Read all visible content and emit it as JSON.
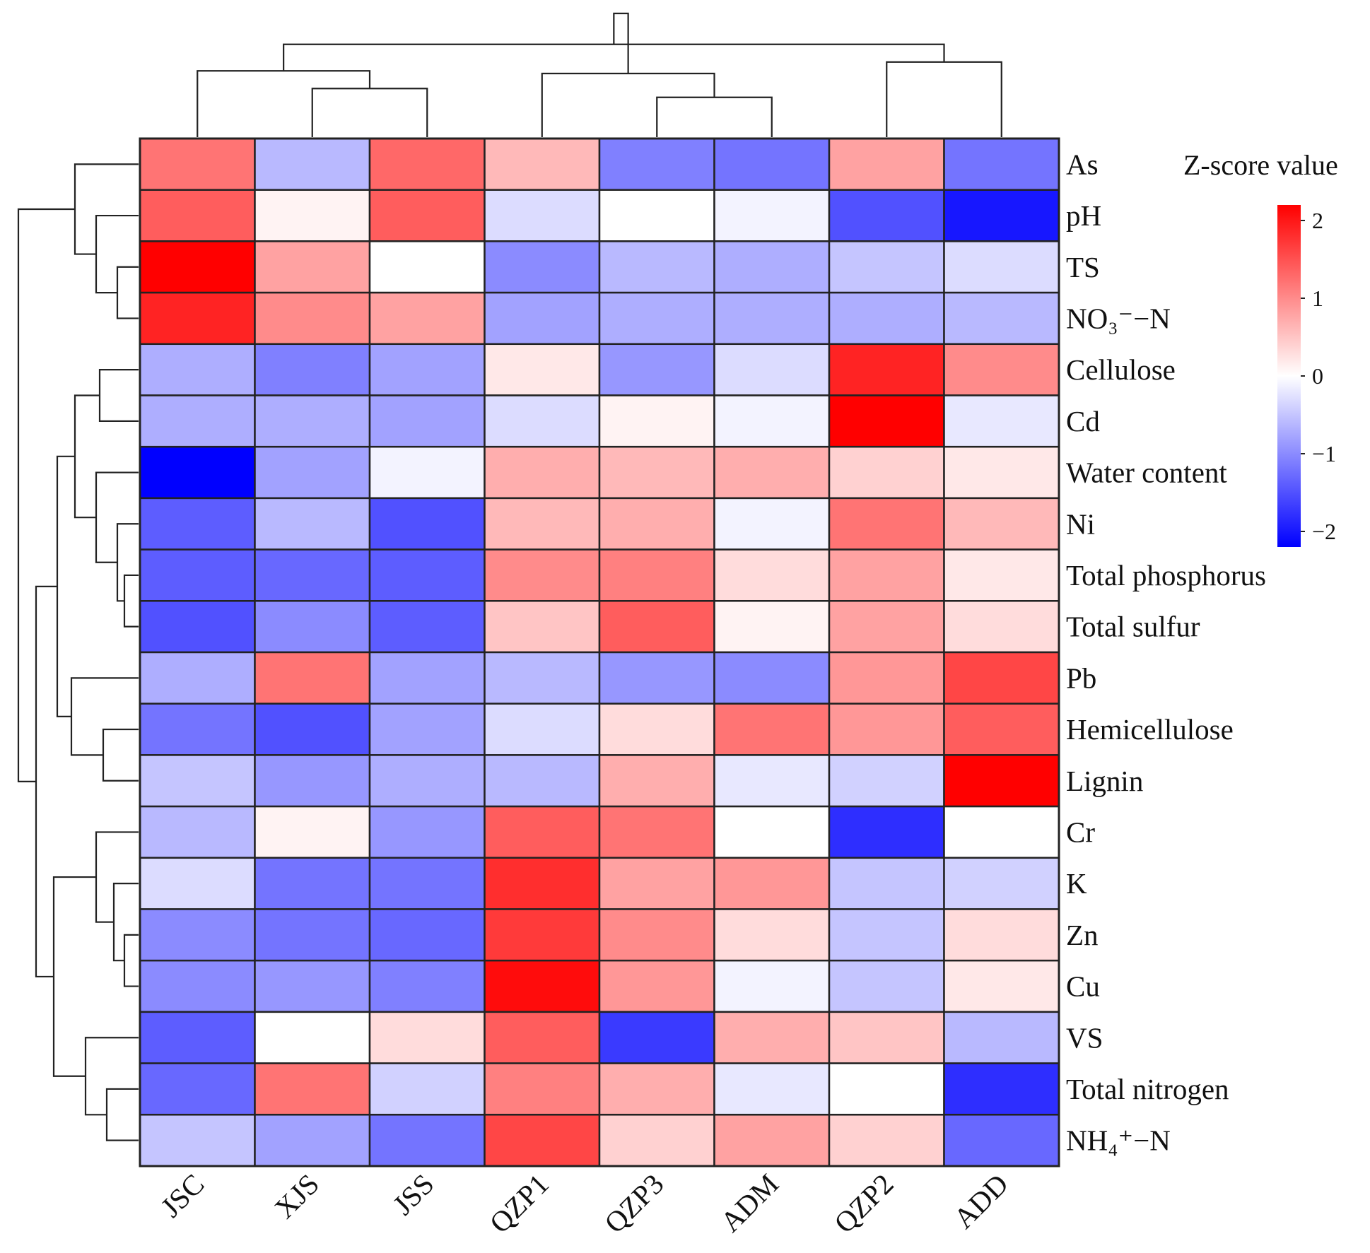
{
  "chart_data": {
    "type": "heatmap",
    "title": "",
    "legend_title": "Z-score value",
    "legend_placement": "top-right",
    "legend_ticks": [
      2,
      1,
      0,
      -1,
      -2
    ],
    "legend_tick_labels": [
      "2",
      "1",
      "0",
      "−1",
      "−2"
    ],
    "value_range": [
      -2.2,
      2.2
    ],
    "colors": {
      "low": "#0000ff",
      "mid": "#ffffff",
      "high": "#ff0000",
      "border": "#222222"
    },
    "columns": [
      "JSC",
      "XJS",
      "JSS",
      "QZP1",
      "QZP3",
      "ADM",
      "QZP2",
      "ADD"
    ],
    "rows": [
      "As",
      "pH",
      "TS",
      "NO₃⁻−N",
      "Cellulose",
      "Cd",
      "Water content",
      "Ni",
      "Total phosphorus",
      "Total sulfur",
      "Pb",
      "Hemicellulose",
      "Lignin",
      "Cr",
      "K",
      "Zn",
      "Cu",
      "VS",
      "Total nitrogen",
      "NH₄⁺−N"
    ],
    "values": [
      [
        1.2,
        -0.6,
        1.3,
        0.6,
        -1.1,
        -1.2,
        0.8,
        -1.2
      ],
      [
        1.4,
        0.1,
        1.4,
        -0.3,
        0.0,
        -0.1,
        -1.5,
        -2.0
      ],
      [
        2.2,
        0.8,
        0.0,
        -1.0,
        -0.6,
        -0.7,
        -0.5,
        -0.3
      ],
      [
        1.9,
        1.0,
        0.8,
        -0.8,
        -0.7,
        -0.7,
        -0.7,
        -0.6
      ],
      [
        -0.7,
        -1.1,
        -0.8,
        0.2,
        -0.9,
        -0.3,
        1.9,
        1.0
      ],
      [
        -0.7,
        -0.7,
        -0.8,
        -0.3,
        0.1,
        -0.1,
        2.3,
        -0.2
      ],
      [
        -2.2,
        -0.8,
        -0.1,
        0.7,
        0.6,
        0.7,
        0.4,
        0.2
      ],
      [
        -1.4,
        -0.6,
        -1.5,
        0.6,
        0.7,
        -0.1,
        1.2,
        0.6
      ],
      [
        -1.4,
        -1.3,
        -1.4,
        1.0,
        1.1,
        0.3,
        0.8,
        0.2
      ],
      [
        -1.5,
        -1.0,
        -1.4,
        0.5,
        1.4,
        0.1,
        0.8,
        0.3
      ],
      [
        -0.7,
        1.2,
        -0.8,
        -0.6,
        -0.9,
        -1.0,
        0.9,
        1.6
      ],
      [
        -1.2,
        -1.5,
        -0.8,
        -0.3,
        0.3,
        1.2,
        0.9,
        1.4
      ],
      [
        -0.5,
        -0.9,
        -0.7,
        -0.6,
        0.7,
        -0.2,
        -0.4,
        2.2
      ],
      [
        -0.6,
        0.1,
        -0.9,
        1.4,
        1.2,
        0.0,
        -1.8,
        0.0
      ],
      [
        -0.3,
        -1.2,
        -1.2,
        1.8,
        0.8,
        0.9,
        -0.5,
        -0.4
      ],
      [
        -1.0,
        -1.2,
        -1.3,
        1.7,
        1.0,
        0.3,
        -0.5,
        0.3
      ],
      [
        -1.0,
        -0.9,
        -1.1,
        2.1,
        0.9,
        -0.1,
        -0.5,
        0.2
      ],
      [
        -1.4,
        0.0,
        0.3,
        1.4,
        -1.7,
        0.7,
        0.5,
        -0.6
      ],
      [
        -1.3,
        1.2,
        -0.4,
        1.1,
        0.7,
        -0.2,
        0.0,
        -1.8
      ],
      [
        -0.5,
        -0.8,
        -1.2,
        1.6,
        0.4,
        0.8,
        0.4,
        -1.3
      ]
    ],
    "column_dendrogram": {
      "leaf_order": [
        "JSC",
        "XJS",
        "JSS",
        "QZP1",
        "QZP3",
        "ADM",
        "QZP2",
        "ADD"
      ],
      "merges": [
        [
          1,
          2,
          0.55
        ],
        [
          4,
          5,
          0.45
        ],
        [
          6,
          7,
          0.85
        ],
        [
          0,
          8,
          0.75
        ],
        [
          3,
          9,
          0.72
        ],
        [
          11,
          10,
          1.05
        ],
        [
          12,
          13,
          1.4
        ]
      ]
    },
    "row_dendrogram": {
      "leaf_order": [
        "As",
        "pH",
        "TS",
        "NO₃⁻−N",
        "Cellulose",
        "Cd",
        "Water content",
        "Ni",
        "Total phosphorus",
        "Total sulfur",
        "Pb",
        "Hemicellulose",
        "Lignin",
        "Cr",
        "K",
        "Zn",
        "Cu",
        "VS",
        "Total nitrogen",
        "NH₄⁺−N"
      ],
      "merges": [
        [
          2,
          3,
          0.3
        ],
        [
          1,
          20,
          0.6
        ],
        [
          0,
          21,
          0.9
        ],
        [
          4,
          5,
          0.55
        ],
        [
          8,
          9,
          0.2
        ],
        [
          7,
          24,
          0.3
        ],
        [
          6,
          25,
          0.6
        ],
        [
          23,
          26,
          0.9
        ],
        [
          11,
          12,
          0.5
        ],
        [
          10,
          28,
          0.95
        ],
        [
          27,
          29,
          1.15
        ],
        [
          15,
          16,
          0.2
        ],
        [
          14,
          31,
          0.35
        ],
        [
          13,
          32,
          0.6
        ],
        [
          18,
          19,
          0.45
        ],
        [
          17,
          34,
          0.75
        ],
        [
          33,
          35,
          1.2
        ],
        [
          30,
          36,
          1.45
        ],
        [
          22,
          37,
          1.7
        ]
      ]
    }
  }
}
